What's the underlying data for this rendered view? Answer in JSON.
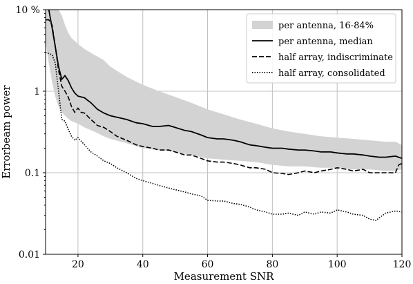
{
  "chart_data": {
    "type": "line",
    "xlabel": "Measurement SNR",
    "ylabel": "Errorbeam power",
    "xlim": [
      10,
      120
    ],
    "ylim": [
      0.01,
      10
    ],
    "yscale": "log",
    "grid": true,
    "legend_position": "top-right",
    "x_ticks": [
      20,
      40,
      60,
      80,
      100,
      120
    ],
    "x_tick_labels": [
      "20",
      "40",
      "60",
      "80",
      "100",
      "120"
    ],
    "y_ticks": [
      0.01,
      0.1,
      1,
      10
    ],
    "y_tick_labels": [
      "0.01",
      "0.1",
      "1",
      "10 %"
    ],
    "band": {
      "name": "per antenna, 16-84%",
      "color": "#d3d3d3",
      "x": [
        10,
        11,
        12,
        13,
        14,
        15,
        16,
        17,
        18,
        20,
        22,
        25,
        28,
        30,
        35,
        40,
        45,
        50,
        55,
        60,
        65,
        70,
        75,
        80,
        85,
        90,
        95,
        100,
        105,
        110,
        115,
        118,
        120
      ],
      "lower": [
        4.0,
        2.2,
        1.3,
        0.85,
        0.65,
        0.55,
        0.5,
        0.46,
        0.43,
        0.4,
        0.36,
        0.32,
        0.28,
        0.26,
        0.23,
        0.2,
        0.19,
        0.18,
        0.165,
        0.15,
        0.145,
        0.14,
        0.135,
        0.125,
        0.12,
        0.12,
        0.115,
        0.115,
        0.11,
        0.11,
        0.105,
        0.105,
        0.11
      ],
      "upper": [
        10,
        10,
        10,
        10,
        10,
        8.5,
        6.5,
        5.2,
        4.5,
        3.8,
        3.3,
        2.8,
        2.4,
        2.0,
        1.5,
        1.2,
        1.0,
        0.85,
        0.72,
        0.6,
        0.52,
        0.45,
        0.4,
        0.35,
        0.32,
        0.3,
        0.28,
        0.27,
        0.26,
        0.25,
        0.24,
        0.24,
        0.22
      ]
    },
    "series": [
      {
        "name": "per antenna, median",
        "dash": "solid",
        "x": [
          11,
          12,
          13,
          14,
          15,
          16,
          17,
          18,
          19,
          20,
          22,
          24,
          26,
          28,
          30,
          32,
          35,
          38,
          40,
          43,
          45,
          48,
          50,
          53,
          55,
          58,
          60,
          63,
          65,
          68,
          70,
          73,
          75,
          78,
          80,
          83,
          85,
          88,
          90,
          93,
          95,
          98,
          100,
          103,
          105,
          108,
          110,
          113,
          115,
          118,
          120
        ],
        "y": [
          10,
          6.0,
          3.5,
          2.0,
          1.4,
          1.55,
          1.35,
          1.1,
          0.95,
          0.87,
          0.83,
          0.72,
          0.6,
          0.54,
          0.5,
          0.48,
          0.45,
          0.41,
          0.4,
          0.37,
          0.37,
          0.38,
          0.36,
          0.33,
          0.32,
          0.29,
          0.27,
          0.26,
          0.26,
          0.25,
          0.24,
          0.22,
          0.215,
          0.205,
          0.2,
          0.2,
          0.195,
          0.19,
          0.19,
          0.185,
          0.18,
          0.18,
          0.175,
          0.17,
          0.17,
          0.165,
          0.16,
          0.155,
          0.155,
          0.16,
          0.15
        ]
      },
      {
        "name": "half array, indiscriminate",
        "dash": "dashed",
        "x": [
          10,
          11,
          12,
          13,
          14,
          15,
          16,
          17,
          18,
          19,
          20,
          21,
          22,
          24,
          26,
          28,
          30,
          32,
          35,
          38,
          40,
          43,
          45,
          48,
          50,
          53,
          55,
          58,
          60,
          63,
          65,
          68,
          70,
          73,
          75,
          78,
          80,
          83,
          85,
          88,
          90,
          93,
          95,
          98,
          100,
          103,
          105,
          108,
          110,
          113,
          115,
          118,
          119,
          120
        ],
        "y": [
          7.5,
          7.5,
          6.5,
          3.5,
          1.8,
          1.15,
          1.0,
          0.85,
          0.65,
          0.55,
          0.62,
          0.55,
          0.54,
          0.45,
          0.38,
          0.36,
          0.32,
          0.28,
          0.25,
          0.22,
          0.21,
          0.2,
          0.19,
          0.19,
          0.18,
          0.165,
          0.165,
          0.15,
          0.14,
          0.135,
          0.135,
          0.13,
          0.125,
          0.115,
          0.115,
          0.11,
          0.1,
          0.098,
          0.095,
          0.1,
          0.105,
          0.1,
          0.105,
          0.11,
          0.115,
          0.11,
          0.105,
          0.11,
          0.1,
          0.1,
          0.1,
          0.1,
          0.125,
          0.13
        ]
      },
      {
        "name": "half array, consolidated",
        "dash": "dotted",
        "x": [
          10,
          12,
          13,
          14,
          15,
          16,
          17,
          18,
          19,
          20,
          22,
          24,
          26,
          28,
          30,
          32,
          35,
          38,
          40,
          43,
          45,
          48,
          50,
          53,
          55,
          58,
          60,
          63,
          65,
          68,
          70,
          73,
          75,
          78,
          80,
          83,
          85,
          88,
          90,
          93,
          95,
          98,
          100,
          103,
          105,
          108,
          110,
          112,
          113,
          115,
          118,
          120
        ],
        "y": [
          3.0,
          2.8,
          2.2,
          1.0,
          0.45,
          0.43,
          0.34,
          0.28,
          0.25,
          0.27,
          0.22,
          0.18,
          0.16,
          0.14,
          0.13,
          0.115,
          0.1,
          0.085,
          0.08,
          0.074,
          0.07,
          0.065,
          0.062,
          0.058,
          0.055,
          0.052,
          0.046,
          0.045,
          0.045,
          0.042,
          0.041,
          0.038,
          0.035,
          0.033,
          0.031,
          0.031,
          0.032,
          0.03,
          0.033,
          0.031,
          0.033,
          0.032,
          0.035,
          0.033,
          0.031,
          0.03,
          0.027,
          0.026,
          0.028,
          0.032,
          0.034,
          0.033
        ]
      }
    ]
  }
}
